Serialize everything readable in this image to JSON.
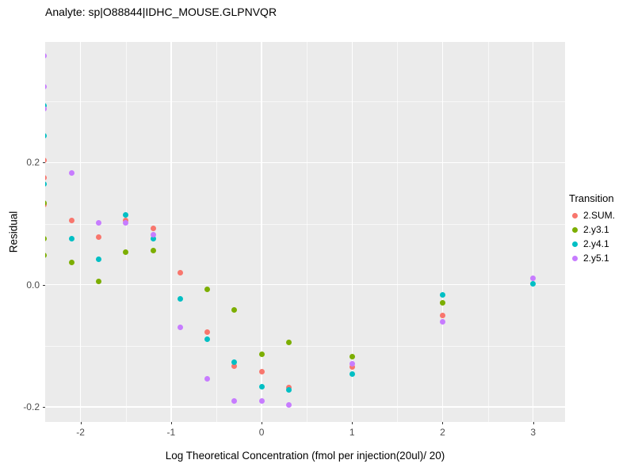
{
  "chart_data": {
    "type": "scatter",
    "title": "Analyte: sp|O88844|IDHC_MOUSE.GLPNVQR",
    "xlabel": "Log Theoretical Concentration (fmol per injection(20ul)/ 20)",
    "ylabel": "Residual",
    "legend_title": "Transition",
    "legend_position": "right",
    "grid": true,
    "panel_background": "#EBEBEB",
    "gridline_color": "#FFFFFF",
    "xlim": [
      -2.391,
      3.353
    ],
    "ylim": [
      -0.2248,
      0.3978
    ],
    "x_ticks": [
      {
        "v": -2,
        "label": "-2"
      },
      {
        "v": -1,
        "label": "-1"
      },
      {
        "v": 0,
        "label": "0"
      },
      {
        "v": 1,
        "label": "1"
      },
      {
        "v": 2,
        "label": "2"
      },
      {
        "v": 3,
        "label": "3"
      }
    ],
    "y_ticks": [
      {
        "v": 0.2,
        "label": "0.2"
      },
      {
        "v": 0.0,
        "label": "0.0"
      },
      {
        "v": -0.2,
        "label": "-0.2"
      }
    ],
    "x_minor": [
      -1.5,
      -0.5,
      0.5,
      1.5,
      2.5
    ],
    "y_minor": [
      0.3,
      0.1,
      -0.1
    ],
    "series": [
      {
        "name": "2.SUM.",
        "color": "#F8766D",
        "points": [
          [
            -2.4,
            0.204
          ],
          [
            -2.4,
            0.175
          ],
          [
            -2.4,
            0.131
          ],
          [
            -2.1,
            0.105
          ],
          [
            -1.8,
            0.078
          ],
          [
            -1.5,
            0.105
          ],
          [
            -1.2,
            0.092
          ],
          [
            -0.9,
            0.02
          ],
          [
            -0.6,
            -0.078
          ],
          [
            -0.3,
            -0.133
          ],
          [
            0,
            -0.142
          ],
          [
            0.3,
            -0.168
          ],
          [
            1,
            -0.135
          ],
          [
            2,
            -0.05
          ]
        ]
      },
      {
        "name": "2.y3.1",
        "color": "#7CAE00",
        "points": [
          [
            -2.4,
            0.134
          ],
          [
            -2.4,
            0.076
          ],
          [
            -2.4,
            0.048
          ],
          [
            -2.1,
            0.037
          ],
          [
            -1.8,
            0.005
          ],
          [
            -1.5,
            0.054
          ],
          [
            -1.2,
            0.056
          ],
          [
            -0.6,
            -0.007
          ],
          [
            -0.3,
            -0.041
          ],
          [
            0,
            -0.114
          ],
          [
            0.3,
            -0.095
          ],
          [
            1,
            -0.118
          ],
          [
            2,
            -0.029
          ]
        ]
      },
      {
        "name": "2.y4.1",
        "color": "#00BFC4",
        "points": [
          [
            -2.4,
            0.293
          ],
          [
            -2.4,
            0.244
          ],
          [
            -2.4,
            0.165
          ],
          [
            -2.1,
            0.076
          ],
          [
            -1.8,
            0.042
          ],
          [
            -1.5,
            0.115
          ],
          [
            -1.2,
            0.076
          ],
          [
            -0.9,
            -0.023
          ],
          [
            -0.6,
            -0.089
          ],
          [
            -0.3,
            -0.127
          ],
          [
            0,
            -0.167
          ],
          [
            0.3,
            -0.172
          ],
          [
            1,
            -0.146
          ],
          [
            2,
            -0.017
          ],
          [
            3,
            0.001
          ]
        ]
      },
      {
        "name": "2.y5.1",
        "color": "#C77CFF",
        "points": [
          [
            -2.4,
            0.375
          ],
          [
            -2.4,
            0.324
          ],
          [
            -2.4,
            0.288
          ],
          [
            -2.1,
            0.183
          ],
          [
            -1.8,
            0.101
          ],
          [
            -1.5,
            0.101
          ],
          [
            -1.2,
            0.082
          ],
          [
            -0.9,
            -0.07
          ],
          [
            -0.6,
            -0.154
          ],
          [
            -0.3,
            -0.19
          ],
          [
            0,
            -0.191
          ],
          [
            0.3,
            -0.197
          ],
          [
            1,
            -0.129
          ],
          [
            2,
            -0.061
          ],
          [
            3,
            0.01
          ]
        ]
      }
    ]
  }
}
